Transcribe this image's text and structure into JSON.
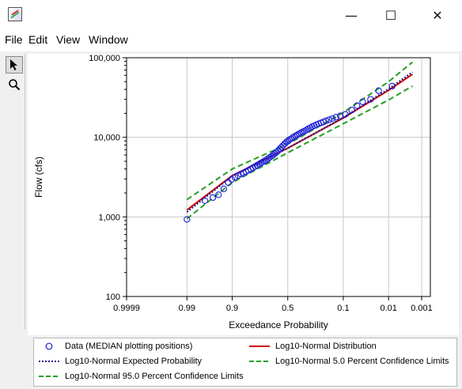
{
  "window": {
    "title": "",
    "controls": {
      "minimize": "—",
      "maximize": "☐",
      "close": "✕"
    }
  },
  "menu": [
    "File",
    "Edit",
    "View",
    "Window"
  ],
  "toolbar": [
    {
      "name": "pointer-icon",
      "glyph": "arrow",
      "active": true
    },
    {
      "name": "zoom-icon",
      "glyph": "magnifier",
      "active": false
    }
  ],
  "colors": {
    "data": "#1f1fd8",
    "distribution": "#d00000",
    "expected": "#1a1a8a",
    "confidence": "#22a022",
    "grid": "#c8c8c8"
  },
  "chart_data": {
    "type": "scatter",
    "xlabel": "Exceedance Probability",
    "ylabel": "Flow (cfs)",
    "x_scale": "normal-probability (reversed)",
    "y_scale": "log10",
    "ylim": [
      100,
      100000
    ],
    "xlim": [
      0.9999,
      0.0005
    ],
    "x_ticks": [
      {
        "p": 0.9999,
        "label": "0.9999"
      },
      {
        "p": 0.99,
        "label": "0.99"
      },
      {
        "p": 0.9,
        "label": "0.9"
      },
      {
        "p": 0.5,
        "label": "0.5"
      },
      {
        "p": 0.1,
        "label": "0.1"
      },
      {
        "p": 0.01,
        "label": "0.01"
      },
      {
        "p": 0.001,
        "label": "0.001"
      }
    ],
    "y_ticks": [
      {
        "v": 100,
        "label": "100"
      },
      {
        "v": 1000,
        "label": "1,000"
      },
      {
        "v": 10000,
        "label": "10,000"
      },
      {
        "v": 100000,
        "label": "100,000"
      }
    ],
    "grid": true,
    "legend_position": "bottom",
    "series": [
      {
        "name": "Data (MEDIAN plotting positions)",
        "kind": "markers",
        "points": [
          [
            0.99,
            930
          ],
          [
            0.972,
            1600
          ],
          [
            0.958,
            1750
          ],
          [
            0.945,
            1900
          ],
          [
            0.93,
            2250
          ],
          [
            0.915,
            2700
          ],
          [
            0.902,
            2950
          ],
          [
            0.888,
            3150
          ],
          [
            0.874,
            3300
          ],
          [
            0.86,
            3450
          ],
          [
            0.846,
            3550
          ],
          [
            0.832,
            3700
          ],
          [
            0.818,
            3850
          ],
          [
            0.803,
            4000
          ],
          [
            0.789,
            4150
          ],
          [
            0.775,
            4300
          ],
          [
            0.761,
            4450
          ],
          [
            0.746,
            4600
          ],
          [
            0.732,
            4750
          ],
          [
            0.718,
            4900
          ],
          [
            0.703,
            5050
          ],
          [
            0.689,
            5200
          ],
          [
            0.675,
            5400
          ],
          [
            0.66,
            5600
          ],
          [
            0.646,
            5800
          ],
          [
            0.631,
            6000
          ],
          [
            0.617,
            6250
          ],
          [
            0.602,
            6500
          ],
          [
            0.588,
            6800
          ],
          [
            0.573,
            7150
          ],
          [
            0.558,
            7500
          ],
          [
            0.544,
            7900
          ],
          [
            0.529,
            8300
          ],
          [
            0.514,
            8700
          ],
          [
            0.5,
            9000
          ],
          [
            0.485,
            9300
          ],
          [
            0.47,
            9600
          ],
          [
            0.455,
            9900
          ],
          [
            0.44,
            10200
          ],
          [
            0.425,
            10500
          ],
          [
            0.41,
            10800
          ],
          [
            0.395,
            11100
          ],
          [
            0.379,
            11400
          ],
          [
            0.364,
            11700
          ],
          [
            0.349,
            12000
          ],
          [
            0.333,
            12400
          ],
          [
            0.318,
            12800
          ],
          [
            0.302,
            13200
          ],
          [
            0.286,
            13600
          ],
          [
            0.27,
            14000
          ],
          [
            0.254,
            14400
          ],
          [
            0.238,
            14800
          ],
          [
            0.222,
            15200
          ],
          [
            0.205,
            15600
          ],
          [
            0.188,
            16100
          ],
          [
            0.17,
            16600
          ],
          [
            0.152,
            17200
          ],
          [
            0.133,
            17900
          ],
          [
            0.113,
            18600
          ],
          [
            0.092,
            19400
          ],
          [
            0.07,
            22000
          ],
          [
            0.055,
            25000
          ],
          [
            0.042,
            28000
          ],
          [
            0.028,
            30000
          ],
          [
            0.018,
            38500
          ],
          [
            0.008,
            44000
          ]
        ]
      },
      {
        "name": "Log10-Normal Distribution",
        "kind": "line",
        "points": [
          [
            0.99,
            1220
          ],
          [
            0.9,
            3300
          ],
          [
            0.5,
            7300
          ],
          [
            0.1,
            17500
          ],
          [
            0.01,
            39000
          ],
          [
            0.002,
            62000
          ]
        ]
      },
      {
        "name": "Log10-Normal Expected Probability",
        "kind": "dotted-line",
        "points": [
          [
            0.99,
            1150
          ],
          [
            0.9,
            3250
          ],
          [
            0.5,
            7300
          ],
          [
            0.1,
            17700
          ],
          [
            0.01,
            40500
          ],
          [
            0.002,
            66000
          ]
        ]
      },
      {
        "name": "Log10-Normal 5.0 Percent Confidence Limits",
        "kind": "dashed-line",
        "points": [
          [
            0.99,
            1650
          ],
          [
            0.9,
            4000
          ],
          [
            0.5,
            8200
          ],
          [
            0.1,
            20500
          ],
          [
            0.01,
            50000
          ],
          [
            0.002,
            88000
          ]
        ]
      },
      {
        "name": "Log10-Normal 95.0 Percent Confidence Limits",
        "kind": "dashed-line",
        "points": [
          [
            0.99,
            950
          ],
          [
            0.9,
            2700
          ],
          [
            0.5,
            6400
          ],
          [
            0.1,
            14800
          ],
          [
            0.01,
            29500
          ],
          [
            0.002,
            44000
          ]
        ]
      }
    ]
  }
}
